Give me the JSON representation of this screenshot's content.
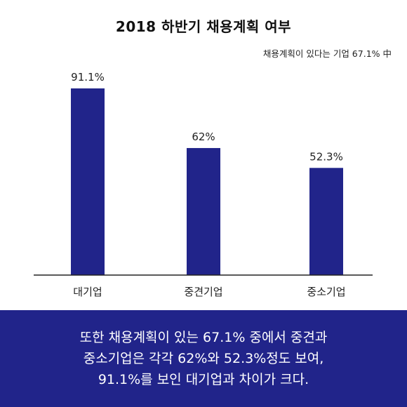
{
  "chart_data": {
    "type": "bar",
    "title": "2018 하반기 채용계획 여부",
    "subtitle": "채용계획이 있다는 기업 67.1% 中",
    "categories": [
      "대기업",
      "중견기업",
      "중소기업"
    ],
    "values": [
      91.1,
      62,
      52.3
    ],
    "value_labels": [
      "91.1%",
      "62%",
      "52.3%"
    ],
    "unit": "%",
    "ylim": [
      0,
      100
    ],
    "grid": false,
    "legend": "none",
    "bar_color": "#21248a"
  },
  "footer": {
    "lines": [
      "또한 채용계획이 있는 67.1% 중에서 중견과",
      "중소기업은 각각 62%와 52.3%정도 보여,",
      "91.1%를 보인 대기업과 차이가 크다."
    ],
    "background": "#21248a"
  }
}
